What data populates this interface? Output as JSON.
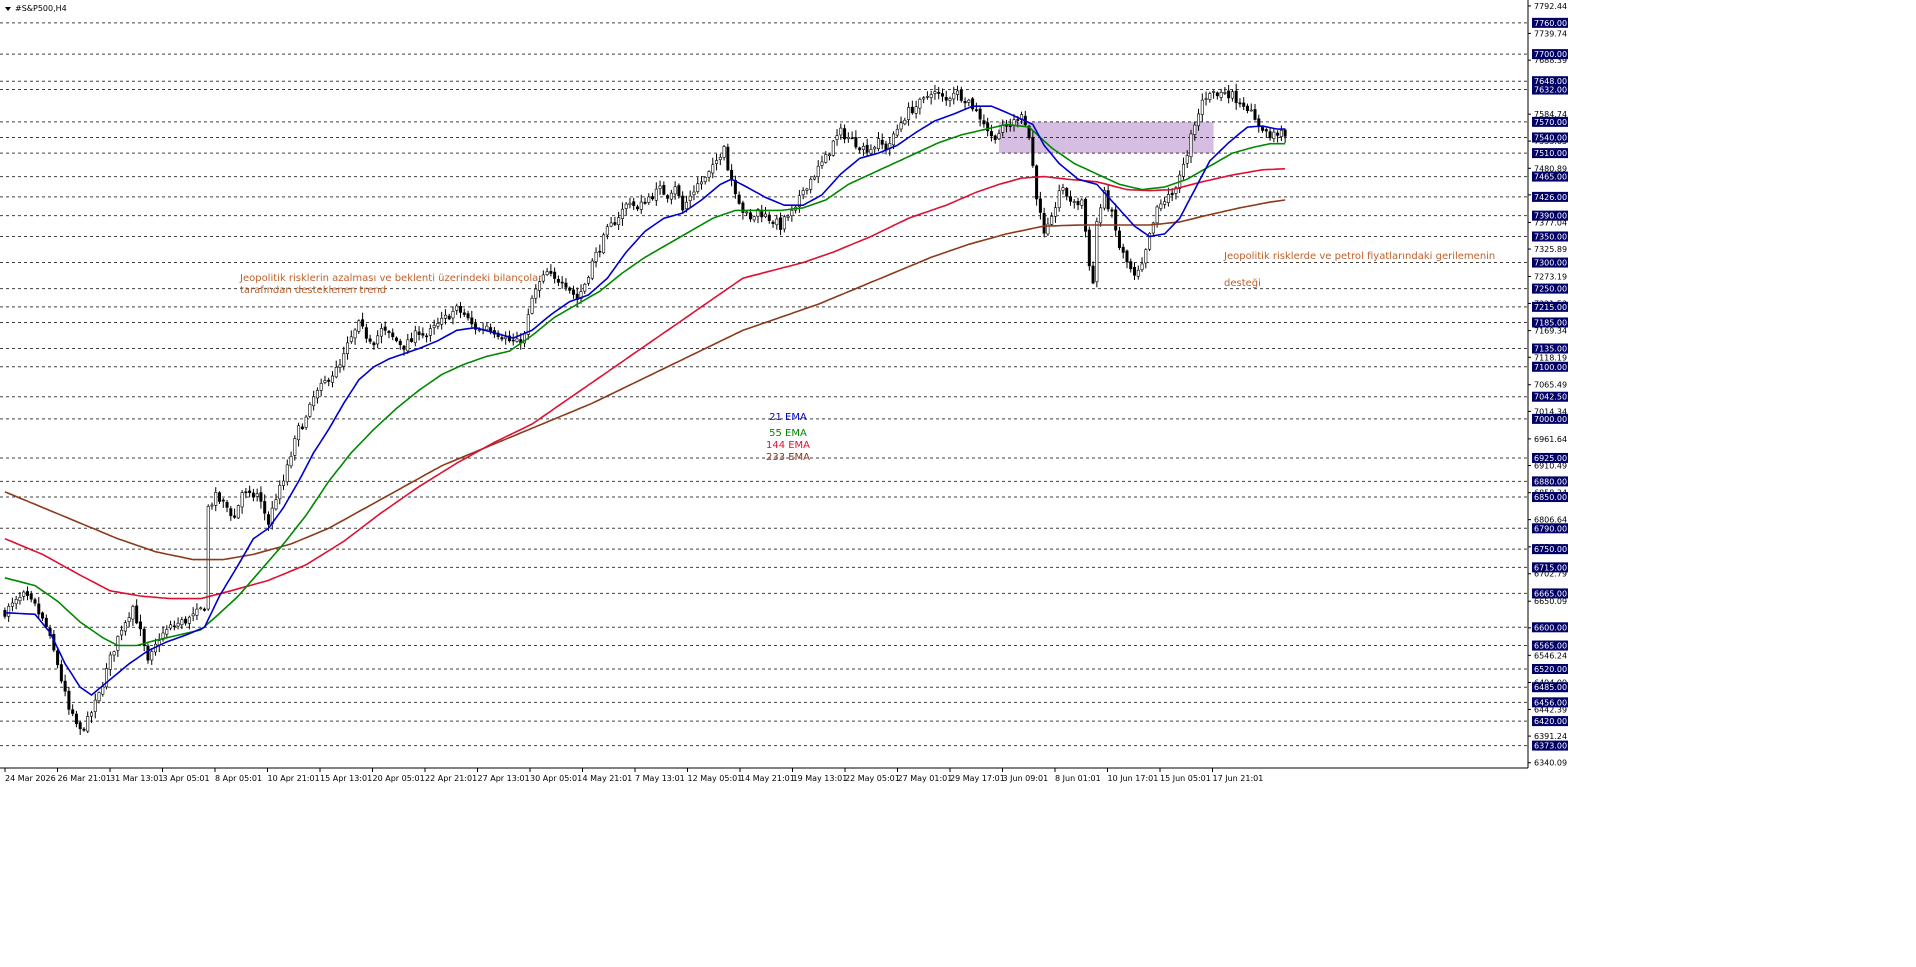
{
  "chart_data": {
    "type": "candlestick",
    "title": "#S&P500,H4",
    "ylim": [
      6330,
      7800
    ],
    "colors": {
      "background": "#ffffff",
      "candle": "#000000",
      "grid": "#000000",
      "ema21": "#0000cc",
      "ema55": "#008800",
      "ema144": "#dd1133",
      "ema233": "#8b3a1a",
      "zone": "#c8a8d8",
      "annotation": "#c0602a",
      "price_box": "#000066",
      "price_text": "#ffffff"
    },
    "x_tick_labels": [
      "24 Mar 2026",
      "26 Mar 21:01",
      "31 Mar 13:01",
      "3 Apr 05:01",
      "8 Apr 05:01",
      "10 Apr 21:01",
      "15 Apr 13:01",
      "20 Apr 05:01",
      "22 Apr 21:01",
      "27 Apr 13:01",
      "30 Apr 05:01",
      "4 May 21:01",
      "7 May 13:01",
      "12 May 05:01",
      "14 May 21:01",
      "19 May 13:01",
      "22 May 05:01",
      "27 May 01:01",
      "29 May 17:01",
      "3 Jun 09:01",
      "8 Jun 01:01",
      "10 Jun 17:01",
      "15 Jun 05:01",
      "17 Jun 21:01"
    ],
    "y_tick_labels": [
      "7792.44",
      "7739.74",
      "7688.39",
      "7584.74",
      "7533.05",
      "7480.89",
      "7429.85",
      "7377.04",
      "7325.89",
      "7273.19",
      "7221.53",
      "7169.34",
      "7118.19",
      "7065.49",
      "7014.34",
      "6961.64",
      "6910.49",
      "6858.34",
      "6806.64",
      "6754.49",
      "6702.79",
      "6650.09",
      "6598.94",
      "6546.24",
      "6494.09",
      "6442.39",
      "6391.24",
      "6340.09"
    ],
    "levels": [
      7760,
      7700,
      7648,
      7632,
      7570,
      7540,
      7510,
      7465,
      7426,
      7390,
      7350,
      7300,
      7250,
      7215,
      7185,
      7135,
      7100,
      7042.5,
      7000,
      6925,
      6880,
      6850,
      6790,
      6750,
      6715,
      6665,
      6600,
      6565,
      6520,
      6485,
      6456,
      6420,
      6373
    ],
    "level_labels": [
      "7760.00",
      "7700.00",
      "7648.00",
      "7632.00",
      "7570.00",
      "7540.00",
      "7510.00",
      "7465.00",
      "7426.00",
      "7390.00",
      "7350.00",
      "7300.00",
      "7250.00",
      "7215.00",
      "7185.00",
      "7135.00",
      "7100.00",
      "7042.50",
      "7000.00",
      "6925.00",
      "6880.00",
      "6850.00",
      "6790.00",
      "6750.00",
      "6715.00",
      "6665.00",
      "6600.00",
      "6565.00",
      "6520.00",
      "6485.00",
      "6456.00",
      "6420.00",
      "6373.00"
    ],
    "zone": {
      "from_bar": 264,
      "to_bar": 321,
      "y_low": 7510,
      "y_high": 7570
    },
    "legend": [
      {
        "label": "21 EMA",
        "color_key": "ema21"
      },
      {
        "label": "55 EMA",
        "color_key": "ema55"
      },
      {
        "label": "144 EMA",
        "color_key": "ema144"
      },
      {
        "label": "233 EMA",
        "color_key": "ema233"
      }
    ],
    "annotations": {
      "left_line1": "Jeopolitik risklerin azalması ve beklenti üzerindeki bilançolar",
      "left_line2": " tarafından desteklenen trend",
      "right_line1": "Jeopolitik risklerde ve petrol fiyatlarındaki gerilemenin",
      "right_line2": "desteği"
    },
    "price_keypoints": [
      [
        0,
        6630
      ],
      [
        5,
        6660
      ],
      [
        8,
        6640
      ],
      [
        11,
        6600
      ],
      [
        14,
        6530
      ],
      [
        17,
        6440
      ],
      [
        20,
        6400
      ],
      [
        22,
        6420
      ],
      [
        25,
        6470
      ],
      [
        28,
        6540
      ],
      [
        31,
        6600
      ],
      [
        34,
        6640
      ],
      [
        36,
        6590
      ],
      [
        38,
        6530
      ],
      [
        41,
        6580
      ],
      [
        44,
        6600
      ],
      [
        47,
        6610
      ],
      [
        50,
        6620
      ],
      [
        53,
        6640
      ],
      [
        54,
        6830
      ],
      [
        56,
        6850
      ],
      [
        59,
        6830
      ],
      [
        61,
        6810
      ],
      [
        63,
        6860
      ],
      [
        65,
        6850
      ],
      [
        67,
        6855
      ],
      [
        69,
        6820
      ],
      [
        70,
        6800
      ],
      [
        72,
        6850
      ],
      [
        74,
        6880
      ],
      [
        76,
        6930
      ],
      [
        78,
        6980
      ],
      [
        80,
        7000
      ],
      [
        82,
        7040
      ],
      [
        84,
        7060
      ],
      [
        86,
        7080
      ],
      [
        89,
        7100
      ],
      [
        91,
        7140
      ],
      [
        94,
        7180
      ],
      [
        96,
        7160
      ],
      [
        98,
        7150
      ],
      [
        100,
        7170
      ],
      [
        102,
        7160
      ],
      [
        104,
        7150
      ],
      [
        106,
        7140
      ],
      [
        108,
        7150
      ],
      [
        110,
        7170
      ],
      [
        112,
        7160
      ],
      [
        115,
        7180
      ],
      [
        118,
        7200
      ],
      [
        120,
        7210
      ],
      [
        122,
        7200
      ],
      [
        124,
        7180
      ],
      [
        126,
        7170
      ],
      [
        128,
        7180
      ],
      [
        130,
        7170
      ],
      [
        132,
        7160
      ],
      [
        134,
        7150
      ],
      [
        136,
        7145
      ],
      [
        138,
        7160
      ],
      [
        140,
        7230
      ],
      [
        142,
        7260
      ],
      [
        144,
        7280
      ],
      [
        146,
        7265
      ],
      [
        148,
        7270
      ],
      [
        150,
        7250
      ],
      [
        152,
        7230
      ],
      [
        154,
        7260
      ],
      [
        156,
        7300
      ],
      [
        158,
        7330
      ],
      [
        160,
        7360
      ],
      [
        162,
        7380
      ],
      [
        164,
        7400
      ],
      [
        166,
        7420
      ],
      [
        168,
        7400
      ],
      [
        170,
        7420
      ],
      [
        172,
        7430
      ],
      [
        174,
        7440
      ],
      [
        176,
        7430
      ],
      [
        178,
        7450
      ],
      [
        180,
        7400
      ],
      [
        182,
        7430
      ],
      [
        184,
        7450
      ],
      [
        186,
        7460
      ],
      [
        188,
        7480
      ],
      [
        190,
        7510
      ],
      [
        191,
        7530
      ],
      [
        192,
        7480
      ],
      [
        194,
        7440
      ],
      [
        196,
        7400
      ],
      [
        198,
        7380
      ],
      [
        200,
        7400
      ],
      [
        202,
        7390
      ],
      [
        204,
        7380
      ],
      [
        206,
        7370
      ],
      [
        208,
        7390
      ],
      [
        210,
        7400
      ],
      [
        212,
        7440
      ],
      [
        214,
        7460
      ],
      [
        216,
        7480
      ],
      [
        218,
        7500
      ],
      [
        220,
        7530
      ],
      [
        222,
        7550
      ],
      [
        224,
        7540
      ],
      [
        226,
        7530
      ],
      [
        228,
        7520
      ],
      [
        230,
        7520
      ],
      [
        232,
        7530
      ],
      [
        234,
        7520
      ],
      [
        236,
        7540
      ],
      [
        238,
        7570
      ],
      [
        240,
        7590
      ],
      [
        242,
        7600
      ],
      [
        244,
        7610
      ],
      [
        246,
        7630
      ],
      [
        248,
        7620
      ],
      [
        250,
        7610
      ],
      [
        252,
        7630
      ],
      [
        254,
        7620
      ],
      [
        256,
        7610
      ],
      [
        258,
        7590
      ],
      [
        260,
        7570
      ],
      [
        262,
        7540
      ],
      [
        264,
        7550
      ],
      [
        266,
        7560
      ],
      [
        268,
        7570
      ],
      [
        270,
        7590
      ],
      [
        272,
        7540
      ],
      [
        274,
        7430
      ],
      [
        276,
        7350
      ],
      [
        278,
        7380
      ],
      [
        280,
        7440
      ],
      [
        282,
        7430
      ],
      [
        284,
        7410
      ],
      [
        286,
        7420
      ],
      [
        288,
        7300
      ],
      [
        289,
        7260
      ],
      [
        290,
        7380
      ],
      [
        292,
        7430
      ],
      [
        294,
        7390
      ],
      [
        296,
        7330
      ],
      [
        298,
        7300
      ],
      [
        300,
        7270
      ],
      [
        302,
        7290
      ],
      [
        304,
        7350
      ],
      [
        306,
        7400
      ],
      [
        308,
        7420
      ],
      [
        310,
        7430
      ],
      [
        312,
        7470
      ],
      [
        314,
        7500
      ],
      [
        315,
        7540
      ],
      [
        316,
        7560
      ],
      [
        318,
        7610
      ],
      [
        320,
        7630
      ],
      [
        322,
        7620
      ],
      [
        324,
        7630
      ],
      [
        326,
        7620
      ],
      [
        328,
        7610
      ],
      [
        330,
        7600
      ],
      [
        332,
        7570
      ],
      [
        334,
        7560
      ],
      [
        336,
        7540
      ],
      [
        338,
        7550
      ],
      [
        340,
        7540
      ]
    ],
    "ema21_keypoints": [
      [
        0,
        6628
      ],
      [
        8,
        6625
      ],
      [
        12,
        6590
      ],
      [
        16,
        6530
      ],
      [
        20,
        6485
      ],
      [
        23,
        6470
      ],
      [
        28,
        6500
      ],
      [
        33,
        6530
      ],
      [
        38,
        6555
      ],
      [
        43,
        6572
      ],
      [
        48,
        6585
      ],
      [
        53,
        6600
      ],
      [
        57,
        6660
      ],
      [
        62,
        6720
      ],
      [
        66,
        6770
      ],
      [
        70,
        6790
      ],
      [
        74,
        6830
      ],
      [
        78,
        6880
      ],
      [
        82,
        6935
      ],
      [
        86,
        6980
      ],
      [
        90,
        7030
      ],
      [
        94,
        7075
      ],
      [
        98,
        7100
      ],
      [
        102,
        7115
      ],
      [
        106,
        7125
      ],
      [
        110,
        7135
      ],
      [
        115,
        7150
      ],
      [
        120,
        7170
      ],
      [
        125,
        7175
      ],
      [
        130,
        7165
      ],
      [
        135,
        7155
      ],
      [
        140,
        7170
      ],
      [
        145,
        7200
      ],
      [
        150,
        7225
      ],
      [
        155,
        7238
      ],
      [
        160,
        7270
      ],
      [
        165,
        7320
      ],
      [
        170,
        7360
      ],
      [
        175,
        7385
      ],
      [
        180,
        7395
      ],
      [
        185,
        7420
      ],
      [
        190,
        7450
      ],
      [
        193,
        7460
      ],
      [
        197,
        7445
      ],
      [
        202,
        7425
      ],
      [
        207,
        7410
      ],
      [
        212,
        7410
      ],
      [
        217,
        7430
      ],
      [
        222,
        7470
      ],
      [
        227,
        7500
      ],
      [
        232,
        7510
      ],
      [
        237,
        7525
      ],
      [
        242,
        7550
      ],
      [
        247,
        7572
      ],
      [
        252,
        7585
      ],
      [
        257,
        7600
      ],
      [
        262,
        7600
      ],
      [
        266,
        7588
      ],
      [
        270,
        7575
      ],
      [
        273,
        7565
      ],
      [
        276,
        7525
      ],
      [
        280,
        7490
      ],
      [
        285,
        7460
      ],
      [
        290,
        7450
      ],
      [
        295,
        7410
      ],
      [
        300,
        7370
      ],
      [
        304,
        7350
      ],
      [
        308,
        7355
      ],
      [
        312,
        7385
      ],
      [
        316,
        7440
      ],
      [
        320,
        7495
      ],
      [
        325,
        7530
      ],
      [
        330,
        7560
      ],
      [
        334,
        7562
      ],
      [
        338,
        7556
      ],
      [
        340,
        7556
      ]
    ],
    "ema55_keypoints": [
      [
        0,
        6695
      ],
      [
        8,
        6680
      ],
      [
        14,
        6650
      ],
      [
        20,
        6610
      ],
      [
        26,
        6580
      ],
      [
        30,
        6565
      ],
      [
        35,
        6565
      ],
      [
        40,
        6575
      ],
      [
        46,
        6585
      ],
      [
        52,
        6595
      ],
      [
        56,
        6620
      ],
      [
        62,
        6660
      ],
      [
        68,
        6710
      ],
      [
        74,
        6760
      ],
      [
        80,
        6815
      ],
      [
        86,
        6880
      ],
      [
        92,
        6935
      ],
      [
        98,
        6980
      ],
      [
        104,
        7020
      ],
      [
        110,
        7055
      ],
      [
        116,
        7085
      ],
      [
        122,
        7105
      ],
      [
        128,
        7120
      ],
      [
        134,
        7130
      ],
      [
        140,
        7160
      ],
      [
        146,
        7195
      ],
      [
        152,
        7220
      ],
      [
        158,
        7245
      ],
      [
        164,
        7280
      ],
      [
        170,
        7310
      ],
      [
        176,
        7335
      ],
      [
        182,
        7360
      ],
      [
        188,
        7385
      ],
      [
        194,
        7400
      ],
      [
        200,
        7400
      ],
      [
        206,
        7400
      ],
      [
        212,
        7405
      ],
      [
        218,
        7420
      ],
      [
        224,
        7450
      ],
      [
        230,
        7470
      ],
      [
        236,
        7490
      ],
      [
        242,
        7510
      ],
      [
        248,
        7530
      ],
      [
        254,
        7545
      ],
      [
        260,
        7555
      ],
      [
        266,
        7565
      ],
      [
        272,
        7560
      ],
      [
        278,
        7520
      ],
      [
        284,
        7490
      ],
      [
        290,
        7470
      ],
      [
        296,
        7450
      ],
      [
        302,
        7440
      ],
      [
        308,
        7445
      ],
      [
        314,
        7460
      ],
      [
        320,
        7485
      ],
      [
        326,
        7510
      ],
      [
        332,
        7522
      ],
      [
        336,
        7528
      ],
      [
        340,
        7528
      ]
    ],
    "ema144_keypoints": [
      [
        0,
        6770
      ],
      [
        10,
        6740
      ],
      [
        20,
        6700
      ],
      [
        28,
        6670
      ],
      [
        36,
        6660
      ],
      [
        44,
        6655
      ],
      [
        52,
        6655
      ],
      [
        60,
        6670
      ],
      [
        70,
        6690
      ],
      [
        80,
        6720
      ],
      [
        90,
        6765
      ],
      [
        100,
        6820
      ],
      [
        110,
        6870
      ],
      [
        120,
        6915
      ],
      [
        130,
        6955
      ],
      [
        140,
        6990
      ],
      [
        150,
        7040
      ],
      [
        160,
        7090
      ],
      [
        170,
        7140
      ],
      [
        180,
        7190
      ],
      [
        190,
        7240
      ],
      [
        196,
        7270
      ],
      [
        204,
        7285
      ],
      [
        212,
        7300
      ],
      [
        220,
        7320
      ],
      [
        230,
        7350
      ],
      [
        240,
        7385
      ],
      [
        250,
        7410
      ],
      [
        258,
        7435
      ],
      [
        264,
        7450
      ],
      [
        270,
        7462
      ],
      [
        276,
        7465
      ],
      [
        282,
        7460
      ],
      [
        290,
        7455
      ],
      [
        298,
        7440
      ],
      [
        304,
        7438
      ],
      [
        310,
        7440
      ],
      [
        318,
        7455
      ],
      [
        326,
        7468
      ],
      [
        334,
        7478
      ],
      [
        340,
        7480
      ]
    ],
    "ema233_keypoints": [
      [
        0,
        6860
      ],
      [
        10,
        6830
      ],
      [
        20,
        6800
      ],
      [
        30,
        6770
      ],
      [
        40,
        6745
      ],
      [
        50,
        6730
      ],
      [
        58,
        6730
      ],
      [
        66,
        6740
      ],
      [
        76,
        6760
      ],
      [
        86,
        6790
      ],
      [
        96,
        6830
      ],
      [
        106,
        6870
      ],
      [
        116,
        6910
      ],
      [
        126,
        6940
      ],
      [
        136,
        6970
      ],
      [
        146,
        7000
      ],
      [
        156,
        7030
      ],
      [
        166,
        7065
      ],
      [
        176,
        7100
      ],
      [
        186,
        7135
      ],
      [
        196,
        7170
      ],
      [
        206,
        7195
      ],
      [
        216,
        7220
      ],
      [
        226,
        7250
      ],
      [
        236,
        7280
      ],
      [
        246,
        7310
      ],
      [
        256,
        7335
      ],
      [
        266,
        7355
      ],
      [
        276,
        7370
      ],
      [
        286,
        7372
      ],
      [
        296,
        7372
      ],
      [
        304,
        7372
      ],
      [
        312,
        7378
      ],
      [
        320,
        7392
      ],
      [
        328,
        7405
      ],
      [
        336,
        7416
      ],
      [
        340,
        7420
      ]
    ]
  }
}
